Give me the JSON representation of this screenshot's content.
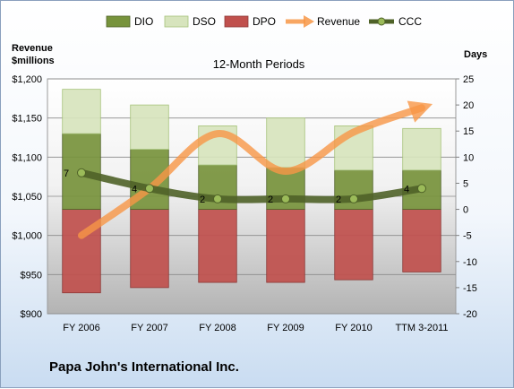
{
  "company_name": "Papa John's International Inc.",
  "chart_data": {
    "type": "bar",
    "title": "12-Month Periods",
    "categories": [
      "FY 2006",
      "FY 2007",
      "FY 2008",
      "FY 2009",
      "FY 2010",
      "TTM 3-2011"
    ],
    "left_axis": {
      "label_line1": "Revenue",
      "label_line2": "$millions",
      "range": [
        900,
        1200
      ],
      "ticks": [
        "$900",
        "$950",
        "$1,000",
        "$1,050",
        "$1,100",
        "$1,150",
        "$1,200"
      ]
    },
    "right_axis": {
      "label": "Days",
      "range": [
        -20,
        25
      ],
      "ticks": [
        "-20",
        "-15",
        "-10",
        "-5",
        "0",
        "5",
        "10",
        "15",
        "20",
        "25"
      ]
    },
    "grid": true,
    "legend_position": "top",
    "series": [
      {
        "name": "DIO",
        "axis": "right",
        "kind": "stacked-bar",
        "color": "#77933c",
        "values": [
          14.5,
          11.5,
          8.5,
          8.0,
          7.5,
          7.5
        ]
      },
      {
        "name": "DSO",
        "axis": "right",
        "kind": "stacked-bar",
        "color": "#d7e4bd",
        "values": [
          8.5,
          8.5,
          7.5,
          9.5,
          8.5,
          8.0
        ]
      },
      {
        "name": "DPO",
        "axis": "right",
        "kind": "stacked-bar",
        "color": "#c0504d",
        "values": [
          -16.0,
          -15.0,
          -14.0,
          -14.0,
          -13.5,
          -12.0
        ]
      },
      {
        "name": "Revenue",
        "axis": "left",
        "kind": "arrow-line",
        "color": "#f79646",
        "values": [
          1000,
          1060,
          1130,
          1082,
          1132,
          1163
        ]
      },
      {
        "name": "CCC",
        "axis": "right",
        "kind": "line",
        "color": "#4f6228",
        "values": [
          7,
          4,
          2,
          2,
          2,
          4
        ],
        "labels": [
          "7",
          "4",
          "2",
          "2",
          "2",
          "4"
        ]
      }
    ]
  }
}
